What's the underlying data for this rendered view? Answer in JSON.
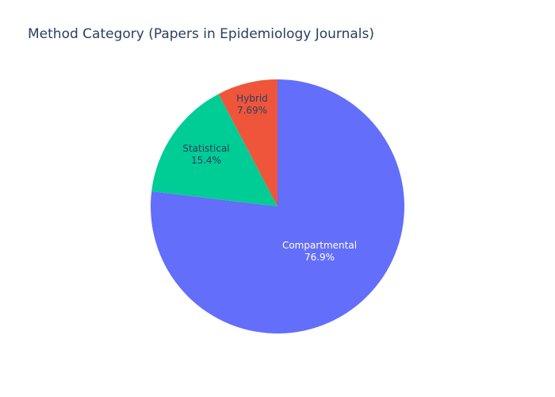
{
  "chart_data": {
    "type": "pie",
    "title": "Method Category (Papers in Epidemiology Journals)",
    "slices": [
      {
        "label": "Compartmental",
        "value": 76.9,
        "percent_label": "76.9%",
        "color": "#636efa",
        "text_color": "#ffffff"
      },
      {
        "label": "Statistical",
        "value": 15.4,
        "percent_label": "15.4%",
        "color": "#00cc96",
        "text_color": "#2a3f5f"
      },
      {
        "label": "Hybrid",
        "value": 7.69,
        "percent_label": "7.69%",
        "color": "#ef553b",
        "text_color": "#2a3f5f"
      }
    ],
    "start_angle_deg": 0,
    "direction": "clockwise",
    "legend": "none"
  }
}
